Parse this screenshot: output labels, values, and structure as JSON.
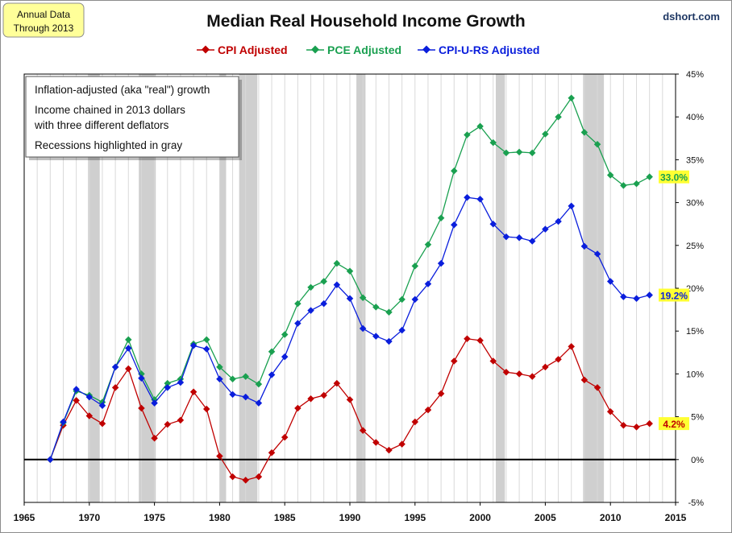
{
  "badge": {
    "line1": "Annual Data",
    "line2": "Through 2013"
  },
  "source": "dshort.com",
  "notes": [
    "Inflation-adjusted (aka \"real\") growth",
    "Income chained in 2013 dollars",
    "with three different deflators",
    "Recessions highlighted in gray"
  ],
  "colors": {
    "cpi": "#c00000",
    "pce": "#1aa050",
    "cpiurs": "#0a1edc",
    "recession": "#cfcfcf",
    "end_label_bg": "#ffff33"
  },
  "chart_data": {
    "type": "line",
    "title": "Median Real Household Income Growth",
    "xlim": [
      1965,
      2015
    ],
    "ylim": [
      -5,
      45
    ],
    "x_ticks": [
      1965,
      1970,
      1975,
      1980,
      1985,
      1990,
      1995,
      2000,
      2005,
      2010,
      2015
    ],
    "y_ticks": [
      -5,
      0,
      5,
      10,
      15,
      20,
      25,
      30,
      35,
      40,
      45
    ],
    "y_tick_labels": [
      "-5%",
      "0%",
      "5%",
      "10%",
      "15%",
      "20%",
      "25%",
      "30%",
      "35%",
      "40%",
      "45%"
    ],
    "grid": "vertical",
    "legend": "top",
    "recessions": [
      [
        1969.9,
        1970.8
      ],
      [
        1973.8,
        1975.1
      ],
      [
        1980.0,
        1980.5
      ],
      [
        1981.5,
        1982.9
      ],
      [
        1990.5,
        1991.2
      ],
      [
        2001.2,
        2001.9
      ],
      [
        2007.9,
        2009.5
      ]
    ],
    "years": [
      1967,
      1968,
      1969,
      1970,
      1971,
      1972,
      1973,
      1974,
      1975,
      1976,
      1977,
      1978,
      1979,
      1980,
      1981,
      1982,
      1983,
      1984,
      1985,
      1986,
      1987,
      1988,
      1989,
      1990,
      1991,
      1992,
      1993,
      1994,
      1995,
      1996,
      1997,
      1998,
      1999,
      2000,
      2001,
      2002,
      2003,
      2004,
      2005,
      2006,
      2007,
      2008,
      2009,
      2010,
      2011,
      2012,
      2013
    ],
    "series": [
      {
        "name": "CPI Adjusted",
        "key": "cpi",
        "end_label": "4.2%",
        "values": [
          0.0,
          4.0,
          6.9,
          5.1,
          4.2,
          8.4,
          10.6,
          6.0,
          2.5,
          4.1,
          4.6,
          7.9,
          5.9,
          0.4,
          -2.0,
          -2.4,
          -2.0,
          0.8,
          2.6,
          6.0,
          7.1,
          7.5,
          8.9,
          7.0,
          3.4,
          2.0,
          1.1,
          1.8,
          4.4,
          5.8,
          7.7,
          11.5,
          14.1,
          13.9,
          11.5,
          10.2,
          10.0,
          9.7,
          10.8,
          11.7,
          13.2,
          9.3,
          8.4,
          5.6,
          4.0,
          3.8,
          4.2
        ]
      },
      {
        "name": "PCE Adjusted",
        "key": "pce",
        "end_label": "33.0%",
        "values": [
          0.0,
          4.3,
          8.0,
          7.5,
          6.7,
          10.8,
          14.0,
          10.0,
          7.0,
          8.9,
          9.4,
          13.5,
          14.0,
          10.8,
          9.4,
          9.7,
          8.8,
          12.6,
          14.6,
          18.2,
          20.1,
          20.8,
          22.9,
          22.0,
          18.9,
          17.8,
          17.2,
          18.7,
          22.6,
          25.1,
          28.2,
          33.7,
          37.9,
          38.9,
          37.0,
          35.8,
          35.9,
          35.8,
          38.0,
          40.0,
          42.2,
          38.2,
          36.8,
          33.2,
          32.0,
          32.2,
          33.0
        ]
      },
      {
        "name": "CPI-U-RS Adjusted",
        "key": "cpiurs",
        "end_label": "19.2%",
        "values": [
          0.0,
          4.4,
          8.2,
          7.3,
          6.3,
          10.8,
          13.0,
          9.5,
          6.6,
          8.4,
          9.0,
          13.3,
          12.9,
          9.4,
          7.6,
          7.3,
          6.6,
          9.9,
          12.0,
          15.9,
          17.4,
          18.2,
          20.4,
          18.8,
          15.3,
          14.4,
          13.8,
          15.1,
          18.7,
          20.5,
          22.9,
          27.4,
          30.6,
          30.4,
          27.5,
          26.0,
          25.9,
          25.5,
          26.9,
          27.8,
          29.6,
          24.9,
          24.0,
          20.8,
          19.0,
          18.8,
          19.2
        ]
      }
    ]
  }
}
